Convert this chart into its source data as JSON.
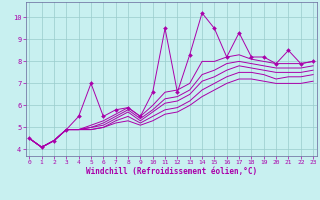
{
  "xlabel": "Windchill (Refroidissement éolien,°C)",
  "bg_color": "#c8f0f0",
  "line_color": "#aa00aa",
  "grid_color": "#99cccc",
  "x_ticks": [
    0,
    1,
    2,
    3,
    4,
    5,
    6,
    7,
    8,
    9,
    10,
    11,
    12,
    13,
    14,
    15,
    16,
    17,
    18,
    19,
    20,
    21,
    22,
    23
  ],
  "y_ticks": [
    4,
    5,
    6,
    7,
    8,
    9,
    10
  ],
  "xlim": [
    -0.3,
    23.3
  ],
  "ylim": [
    3.7,
    10.7
  ],
  "lines": [
    [
      4.5,
      4.1,
      4.4,
      4.9,
      5.5,
      7.0,
      5.5,
      5.8,
      5.9,
      5.5,
      6.6,
      9.5,
      6.6,
      8.3,
      10.2,
      9.5,
      8.2,
      9.3,
      8.2,
      8.2,
      7.9,
      8.5,
      7.9,
      8.0
    ],
    [
      4.5,
      4.1,
      4.4,
      4.9,
      4.9,
      5.1,
      5.3,
      5.6,
      5.9,
      5.5,
      6.0,
      6.6,
      6.7,
      7.0,
      8.0,
      8.0,
      8.2,
      8.3,
      8.1,
      8.0,
      7.9,
      7.9,
      7.9,
      8.0
    ],
    [
      4.5,
      4.1,
      4.4,
      4.9,
      4.9,
      5.0,
      5.2,
      5.5,
      5.8,
      5.4,
      5.8,
      6.3,
      6.4,
      6.7,
      7.4,
      7.6,
      7.9,
      8.0,
      7.9,
      7.8,
      7.7,
      7.7,
      7.7,
      7.8
    ],
    [
      4.5,
      4.1,
      4.4,
      4.9,
      4.9,
      5.0,
      5.1,
      5.4,
      5.7,
      5.3,
      5.7,
      6.1,
      6.2,
      6.5,
      7.1,
      7.3,
      7.6,
      7.8,
      7.7,
      7.6,
      7.5,
      7.5,
      7.5,
      7.6
    ],
    [
      4.5,
      4.1,
      4.4,
      4.9,
      4.9,
      4.9,
      5.0,
      5.3,
      5.5,
      5.2,
      5.5,
      5.8,
      5.9,
      6.2,
      6.7,
      7.0,
      7.3,
      7.5,
      7.5,
      7.4,
      7.2,
      7.3,
      7.3,
      7.4
    ],
    [
      4.5,
      4.1,
      4.4,
      4.9,
      4.9,
      4.9,
      5.0,
      5.2,
      5.3,
      5.1,
      5.3,
      5.6,
      5.7,
      6.0,
      6.4,
      6.7,
      7.0,
      7.2,
      7.2,
      7.1,
      7.0,
      7.0,
      7.0,
      7.1
    ]
  ]
}
